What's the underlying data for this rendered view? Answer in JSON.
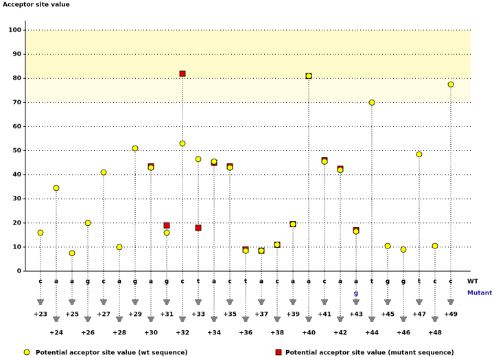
{
  "chart_data": {
    "type": "stem",
    "y_label": "Acceptor site value",
    "categories": [
      "+23",
      "+24",
      "+25",
      "+26",
      "+27",
      "+28",
      "+29",
      "+30",
      "+31",
      "+32",
      "+33",
      "+34",
      "+35",
      "+36",
      "+37",
      "+38",
      "+39",
      "+40",
      "+41",
      "+42",
      "+43",
      "+44",
      "+45",
      "+46",
      "+47",
      "+48",
      "+49"
    ],
    "wt_sequence": [
      "c",
      "a",
      "a",
      "g",
      "c",
      "a",
      "g",
      "a",
      "g",
      "c",
      "t",
      "a",
      "c",
      "t",
      "a",
      "c",
      "a",
      "a",
      "c",
      "a",
      "a",
      "t",
      "g",
      "g",
      "t",
      "c",
      "c"
    ],
    "mutant_sequence": [
      null,
      null,
      null,
      null,
      null,
      null,
      null,
      null,
      null,
      null,
      null,
      null,
      null,
      null,
      null,
      null,
      null,
      null,
      null,
      null,
      "g",
      null,
      null,
      null,
      null,
      null,
      null
    ],
    "wt_row_label": "WT",
    "mutant_row_label": "Mutant",
    "series": [
      {
        "name": "Potential acceptor site value (mutant sequence)",
        "color": "#e00000",
        "marker": "square",
        "values": [
          null,
          null,
          null,
          null,
          null,
          null,
          null,
          43.5,
          19,
          82,
          18,
          45,
          43.5,
          9,
          8.5,
          11,
          19.5,
          81,
          46,
          42.5,
          17,
          null,
          null,
          null,
          null,
          null,
          null
        ]
      },
      {
        "name": "Potential acceptor site value (wt sequence)",
        "color": "#ffff00",
        "marker": "circle",
        "values": [
          16,
          34.5,
          7.5,
          20,
          41,
          10,
          51,
          43,
          16,
          53,
          46.5,
          45.5,
          43,
          8.5,
          8.5,
          11,
          19.5,
          81,
          45.5,
          42,
          16.5,
          70,
          10.5,
          9,
          48.5,
          10.5,
          77.5
        ]
      }
    ],
    "bands": [
      {
        "from": 80,
        "to": 100,
        "color": "#fffbcc"
      },
      {
        "from": 70,
        "to": 80,
        "color": "#fffde6"
      }
    ],
    "ylim": [
      0,
      104
    ],
    "yticks": [
      0,
      10,
      20,
      30,
      40,
      50,
      60,
      70,
      80,
      90,
      100
    ],
    "grid": true
  }
}
